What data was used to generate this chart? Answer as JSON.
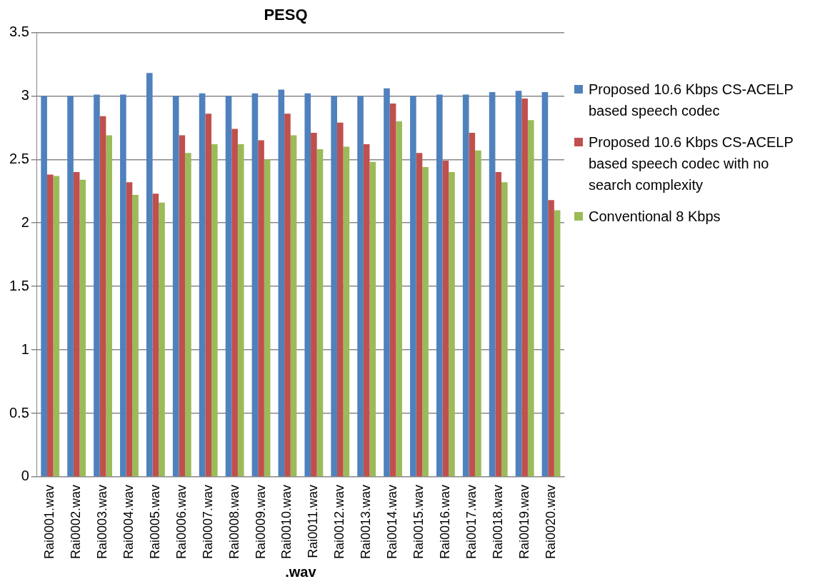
{
  "chart_data": {
    "type": "bar",
    "title": "PESQ",
    "xlabel": ".wav",
    "categories": [
      "Rai0001.wav",
      "Rai0002.wav",
      "Rai0003.wav",
      "Rai0004.wav",
      "Rai0005.wav",
      "Rai0006.wav",
      "Rai0007.wav",
      "Rai0008.wav",
      "Rai0009.wav",
      "Rai0010.wav",
      "Rai0011.wav",
      "Rai0012.wav",
      "Rai0013.wav",
      "Rai0014.wav",
      "Rai0015.wav",
      "Rai0016.wav",
      "Rai0017.wav",
      "Rai0018.wav",
      "Rai0019.wav",
      "Rai0020.wav"
    ],
    "series": [
      {
        "name": "Proposed 10.6 Kbps CS-ACELP based speech codec",
        "color": "#4f81bd",
        "values": [
          3.0,
          3.0,
          3.01,
          3.01,
          3.18,
          3.0,
          3.02,
          3.0,
          3.02,
          3.05,
          3.02,
          3.0,
          3.0,
          3.06,
          3.0,
          3.01,
          3.01,
          3.03,
          3.04,
          3.03
        ]
      },
      {
        "name": "Proposed 10.6 Kbps CS-ACELP based speech codec with no search complexity",
        "color": "#c0504d",
        "values": [
          2.38,
          2.4,
          2.84,
          2.32,
          2.23,
          2.69,
          2.86,
          2.74,
          2.65,
          2.86,
          2.71,
          2.79,
          2.62,
          2.94,
          2.55,
          2.49,
          2.71,
          2.4,
          2.98,
          2.18
        ]
      },
      {
        "name": "Conventional 8 Kbps",
        "color": "#9bbb59",
        "values": [
          2.37,
          2.34,
          2.69,
          2.22,
          2.16,
          2.55,
          2.62,
          2.62,
          2.5,
          2.69,
          2.58,
          2.6,
          2.48,
          2.8,
          2.44,
          2.4,
          2.57,
          2.32,
          2.81,
          2.1
        ]
      }
    ],
    "ylim": [
      0,
      3.5
    ],
    "yticks": [
      0,
      0.5,
      1,
      1.5,
      2,
      2.5,
      3,
      3.5
    ],
    "grid": "y",
    "legend": "right"
  }
}
